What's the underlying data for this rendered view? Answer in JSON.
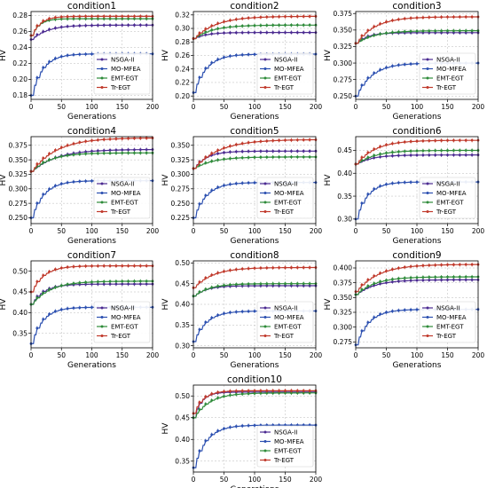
{
  "chart_data": [
    {
      "type": "line",
      "title": "condition1",
      "xlabel": "Generations",
      "ylabel": "HV",
      "xlim": [
        0,
        200
      ],
      "ylim": [
        0.175,
        0.285
      ],
      "yticks": [
        "0.18",
        "0.20",
        "0.22",
        "0.24",
        "0.26",
        "0.28"
      ],
      "xticks": [
        "0",
        "50",
        "100",
        "150",
        "200"
      ],
      "legend": "right",
      "series": [
        {
          "name": "NSGA-II",
          "color": "#4b2a91",
          "start": 0.25,
          "end": 0.268,
          "rate": 25
        },
        {
          "name": "MO-MFEA",
          "color": "#2b4fb0",
          "start": 0.18,
          "end": 0.232,
          "rate": 18
        },
        {
          "name": "EMT-EGT",
          "color": "#2e8b3a",
          "start": 0.255,
          "end": 0.276,
          "rate": 12
        },
        {
          "name": "Tr-EGT",
          "color": "#c0392b",
          "start": 0.255,
          "end": 0.279,
          "rate": 14
        }
      ]
    },
    {
      "type": "line",
      "title": "condition2",
      "xlabel": "Generations",
      "ylabel": "HV",
      "xlim": [
        0,
        200
      ],
      "ylim": [
        0.195,
        0.325
      ],
      "yticks": [
        "0.20",
        "0.22",
        "0.24",
        "0.26",
        "0.28",
        "0.30",
        "0.32"
      ],
      "xticks": [
        "0",
        "50",
        "100",
        "150",
        "200"
      ],
      "legend": "right",
      "series": [
        {
          "name": "NSGA-II",
          "color": "#4b2a91",
          "start": 0.285,
          "end": 0.294,
          "rate": 20
        },
        {
          "name": "MO-MFEA",
          "color": "#2b4fb0",
          "start": 0.205,
          "end": 0.262,
          "rate": 20
        },
        {
          "name": "EMT-EGT",
          "color": "#2e8b3a",
          "start": 0.285,
          "end": 0.305,
          "rate": 30
        },
        {
          "name": "Tr-EGT",
          "color": "#c0392b",
          "start": 0.285,
          "end": 0.318,
          "rate": 35
        }
      ]
    },
    {
      "type": "line",
      "title": "condition3",
      "xlabel": "Generations",
      "ylabel": "HV",
      "xlim": [
        0,
        200
      ],
      "ylim": [
        0.245,
        0.378
      ],
      "yticks": [
        "0.250",
        "0.275",
        "0.300",
        "0.325",
        "0.350",
        "0.375"
      ],
      "xticks": [
        "0",
        "50",
        "100",
        "150",
        "200"
      ],
      "legend": "right",
      "series": [
        {
          "name": "NSGA-II",
          "color": "#4b2a91",
          "start": 0.33,
          "end": 0.346,
          "rate": 18
        },
        {
          "name": "MO-MFEA",
          "color": "#2b4fb0",
          "start": 0.25,
          "end": 0.3,
          "rate": 25
        },
        {
          "name": "EMT-EGT",
          "color": "#2e8b3a",
          "start": 0.33,
          "end": 0.349,
          "rate": 30
        },
        {
          "name": "Tr-EGT",
          "color": "#c0392b",
          "start": 0.33,
          "end": 0.37,
          "rate": 30
        }
      ]
    },
    {
      "type": "line",
      "title": "condition4",
      "xlabel": "Generations",
      "ylabel": "HV",
      "xlim": [
        0,
        200
      ],
      "ylim": [
        0.24,
        0.39
      ],
      "yticks": [
        "0.250",
        "0.275",
        "0.300",
        "0.325",
        "0.350",
        "0.375"
      ],
      "xticks": [
        "0",
        "50",
        "100",
        "150",
        "200"
      ],
      "legend": "right",
      "series": [
        {
          "name": "NSGA-II",
          "color": "#4b2a91",
          "start": 0.33,
          "end": 0.368,
          "rate": 40
        },
        {
          "name": "MO-MFEA",
          "color": "#2b4fb0",
          "start": 0.25,
          "end": 0.314,
          "rate": 20
        },
        {
          "name": "EMT-EGT",
          "color": "#2e8b3a",
          "start": 0.33,
          "end": 0.362,
          "rate": 30
        },
        {
          "name": "Tr-EGT",
          "color": "#c0392b",
          "start": 0.33,
          "end": 0.388,
          "rate": 40
        }
      ]
    },
    {
      "type": "line",
      "title": "condition5",
      "xlabel": "Generations",
      "ylabel": "HV",
      "xlim": [
        0,
        200
      ],
      "ylim": [
        0.215,
        0.365
      ],
      "yticks": [
        "0.225",
        "0.250",
        "0.275",
        "0.300",
        "0.325",
        "0.350"
      ],
      "xticks": [
        "0",
        "50",
        "100",
        "150",
        "200"
      ],
      "legend": "right",
      "series": [
        {
          "name": "NSGA-II",
          "color": "#4b2a91",
          "start": 0.31,
          "end": 0.34,
          "rate": 20
        },
        {
          "name": "MO-MFEA",
          "color": "#2b4fb0",
          "start": 0.225,
          "end": 0.286,
          "rate": 20
        },
        {
          "name": "EMT-EGT",
          "color": "#2e8b3a",
          "start": 0.31,
          "end": 0.33,
          "rate": 30
        },
        {
          "name": "Tr-EGT",
          "color": "#c0392b",
          "start": 0.31,
          "end": 0.36,
          "rate": 40
        }
      ]
    },
    {
      "type": "line",
      "title": "condition6",
      "xlabel": "Generations",
      "ylabel": "HV",
      "xlim": [
        0,
        200
      ],
      "ylim": [
        0.29,
        0.48
      ],
      "yticks": [
        "0.30",
        "0.35",
        "0.40",
        "0.45"
      ],
      "xticks": [
        "0",
        "50",
        "100",
        "150",
        "200"
      ],
      "legend": "right",
      "series": [
        {
          "name": "NSGA-II",
          "color": "#4b2a91",
          "start": 0.42,
          "end": 0.44,
          "rate": 25
        },
        {
          "name": "MO-MFEA",
          "color": "#2b4fb0",
          "start": 0.3,
          "end": 0.381,
          "rate": 18
        },
        {
          "name": "EMT-EGT",
          "color": "#2e8b3a",
          "start": 0.42,
          "end": 0.45,
          "rate": 30
        },
        {
          "name": "Tr-EGT",
          "color": "#c0392b",
          "start": 0.42,
          "end": 0.472,
          "rate": 30
        }
      ]
    },
    {
      "type": "line",
      "title": "condition7",
      "xlabel": "Generations",
      "ylabel": "HV",
      "xlim": [
        0,
        200
      ],
      "ylim": [
        0.315,
        0.525
      ],
      "yticks": [
        "0.35",
        "0.40",
        "0.45",
        "0.50"
      ],
      "xticks": [
        "0",
        "50",
        "100",
        "150",
        "200"
      ],
      "legend": "right",
      "series": [
        {
          "name": "NSGA-II",
          "color": "#4b2a91",
          "start": 0.42,
          "end": 0.469,
          "rate": 20
        },
        {
          "name": "MO-MFEA",
          "color": "#2b4fb0",
          "start": 0.325,
          "end": 0.413,
          "rate": 18
        },
        {
          "name": "EMT-EGT",
          "color": "#2e8b3a",
          "start": 0.42,
          "end": 0.476,
          "rate": 30
        },
        {
          "name": "Tr-EGT",
          "color": "#c0392b",
          "start": 0.45,
          "end": 0.513,
          "rate": 20
        }
      ]
    },
    {
      "type": "line",
      "title": "condition8",
      "xlabel": "Generations",
      "ylabel": "HV",
      "xlim": [
        0,
        200
      ],
      "ylim": [
        0.295,
        0.505
      ],
      "yticks": [
        "0.30",
        "0.35",
        "0.40",
        "0.45",
        "0.50"
      ],
      "xticks": [
        "0",
        "50",
        "100",
        "150",
        "200"
      ],
      "legend": "right",
      "series": [
        {
          "name": "NSGA-II",
          "color": "#4b2a91",
          "start": 0.42,
          "end": 0.445,
          "rate": 20
        },
        {
          "name": "MO-MFEA",
          "color": "#2b4fb0",
          "start": 0.31,
          "end": 0.384,
          "rate": 20
        },
        {
          "name": "EMT-EGT",
          "color": "#2e8b3a",
          "start": 0.42,
          "end": 0.45,
          "rate": 25
        },
        {
          "name": "Tr-EGT",
          "color": "#c0392b",
          "start": 0.44,
          "end": 0.489,
          "rate": 30
        }
      ]
    },
    {
      "type": "line",
      "title": "condition9",
      "xlabel": "Generations",
      "ylabel": "HV",
      "xlim": [
        0,
        200
      ],
      "ylim": [
        0.265,
        0.412
      ],
      "yticks": [
        "0.275",
        "0.300",
        "0.325",
        "0.350",
        "0.375",
        "0.400"
      ],
      "xticks": [
        "0",
        "50",
        "100",
        "150",
        "200"
      ],
      "legend": "right",
      "series": [
        {
          "name": "NSGA-II",
          "color": "#4b2a91",
          "start": 0.355,
          "end": 0.38,
          "rate": 30
        },
        {
          "name": "MO-MFEA",
          "color": "#2b4fb0",
          "start": 0.27,
          "end": 0.33,
          "rate": 20
        },
        {
          "name": "EMT-EGT",
          "color": "#2e8b3a",
          "start": 0.355,
          "end": 0.385,
          "rate": 30
        },
        {
          "name": "Tr-EGT",
          "color": "#c0392b",
          "start": 0.36,
          "end": 0.406,
          "rate": 35
        }
      ]
    },
    {
      "type": "line",
      "title": "condition10",
      "xlabel": "Generations",
      "ylabel": "HV",
      "xlim": [
        0,
        200
      ],
      "ylim": [
        0.325,
        0.525
      ],
      "yticks": [
        "0.35",
        "0.40",
        "0.45",
        "0.50"
      ],
      "xticks": [
        "0",
        "50",
        "100",
        "150",
        "200"
      ],
      "legend": "right",
      "series": [
        {
          "name": "NSGA-II",
          "color": "#4b2a91",
          "start": 0.45,
          "end": 0.509,
          "rate": 12
        },
        {
          "name": "MO-MFEA",
          "color": "#2b4fb0",
          "start": 0.335,
          "end": 0.433,
          "rate": 20
        },
        {
          "name": "EMT-EGT",
          "color": "#2e8b3a",
          "start": 0.45,
          "end": 0.507,
          "rate": 25
        },
        {
          "name": "Tr-EGT",
          "color": "#c0392b",
          "start": 0.46,
          "end": 0.512,
          "rate": 15
        }
      ]
    }
  ]
}
